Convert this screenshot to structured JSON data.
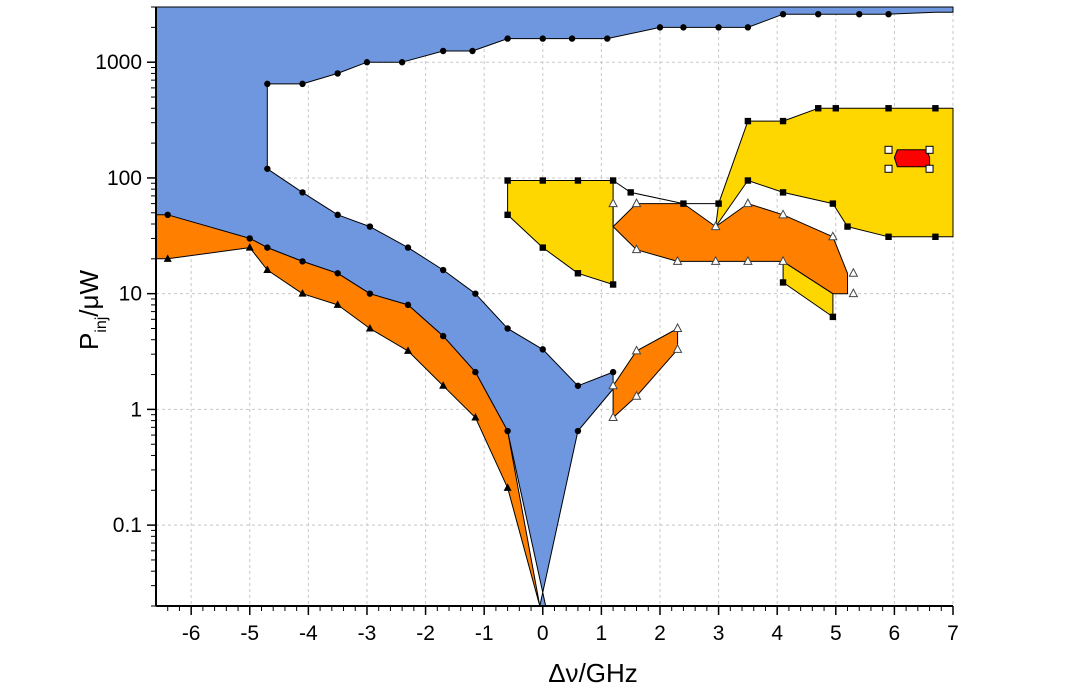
{
  "chart_data": {
    "type": "area",
    "xlabel": {
      "main": "Δν",
      "suffix": "/GHz"
    },
    "ylabel": {
      "main": "P",
      "sub": "inj",
      "suffix": "/μW"
    },
    "xlim": [
      -6.6,
      7
    ],
    "ylim": [
      0.02,
      3000
    ],
    "yscale": "log",
    "x_ticks": [
      -6,
      -5,
      -4,
      -3,
      -2,
      -1,
      0,
      1,
      2,
      3,
      4,
      5,
      6,
      7
    ],
    "x_tick_labels": [
      "-6",
      "-5",
      "-4",
      "-3",
      "-2",
      "-1",
      "0",
      "1",
      "2",
      "3",
      "4",
      "5",
      "6",
      "7"
    ],
    "y_ticks": [
      0.1,
      1,
      10,
      100,
      1000
    ],
    "y_tick_labels": [
      "0.1",
      "1",
      "10",
      "100",
      "1000"
    ],
    "grid": true,
    "colors": {
      "blue": "#6f97e0",
      "orange": "#ff8000",
      "yellow": "#ffd700",
      "red": "#ff0000",
      "line": "#000000",
      "grid": "#c8c8c8"
    },
    "regions": [
      {
        "color": "blue",
        "markers": [
          "circle"
        ],
        "polygon": [
          [
            -6.6,
            3000
          ],
          [
            7,
            3000
          ],
          [
            7,
            2700
          ],
          [
            6.7,
            2700
          ],
          [
            5.9,
            2600
          ],
          [
            5.4,
            2600
          ],
          [
            5,
            2600
          ],
          [
            4.7,
            2600
          ],
          [
            4.1,
            2600
          ],
          [
            3.5,
            2000
          ],
          [
            3,
            2000
          ],
          [
            2.4,
            2000
          ],
          [
            2,
            2000
          ],
          [
            1.1,
            1600
          ],
          [
            0.5,
            1600
          ],
          [
            0,
            1600
          ],
          [
            -0.6,
            1600
          ],
          [
            -1.2,
            1250
          ],
          [
            -1.7,
            1250
          ],
          [
            -2.4,
            1000
          ],
          [
            -3,
            1000
          ],
          [
            -3.5,
            800
          ],
          [
            -4.1,
            650
          ],
          [
            -4.7,
            650
          ],
          [
            -4.7,
            120
          ],
          [
            -4.1,
            75
          ],
          [
            -3.5,
            48
          ],
          [
            -2.95,
            38
          ],
          [
            -2.3,
            25
          ],
          [
            -1.7,
            16
          ],
          [
            -1.15,
            10
          ],
          [
            -0.6,
            5
          ],
          [
            0,
            3.3
          ],
          [
            0.6,
            1.6
          ],
          [
            1.2,
            2.1
          ],
          [
            1.2,
            1.5
          ],
          [
            0.6,
            0.65
          ],
          [
            -0.05,
            0.02
          ],
          [
            0.05,
            0.02
          ],
          [
            -0.6,
            0.65
          ],
          [
            -1.15,
            2.1
          ],
          [
            -1.7,
            4.3
          ],
          [
            -2.3,
            8
          ],
          [
            -2.95,
            10
          ],
          [
            -3.5,
            15
          ],
          [
            -4.1,
            19
          ],
          [
            -4.7,
            25
          ],
          [
            -5,
            30
          ],
          [
            -6.6,
            48
          ]
        ],
        "marker_points": [
          [
            -6.4,
            48
          ],
          [
            -5,
            30
          ],
          [
            -4.7,
            25
          ],
          [
            -4.1,
            19
          ],
          [
            -3.5,
            15
          ],
          [
            -2.95,
            10
          ],
          [
            -2.3,
            8
          ],
          [
            -1.7,
            4.3
          ],
          [
            -1.15,
            2.1
          ],
          [
            -0.6,
            0.65
          ],
          [
            0.6,
            0.65
          ],
          [
            1.2,
            2.1
          ],
          [
            0.6,
            1.6
          ],
          [
            0,
            3.3
          ],
          [
            -0.6,
            5
          ],
          [
            -1.15,
            10
          ],
          [
            -1.7,
            16
          ],
          [
            -2.3,
            25
          ],
          [
            -2.95,
            38
          ],
          [
            -3.5,
            48
          ],
          [
            -4.1,
            75
          ],
          [
            -4.7,
            120
          ],
          [
            -4.7,
            650
          ],
          [
            -4.1,
            650
          ],
          [
            -3.5,
            800
          ],
          [
            -3,
            1000
          ],
          [
            -2.4,
            1000
          ],
          [
            -1.7,
            1250
          ],
          [
            -1.2,
            1250
          ],
          [
            -0.6,
            1600
          ],
          [
            0,
            1600
          ],
          [
            0.5,
            1600
          ],
          [
            1.1,
            1600
          ],
          [
            2,
            2000
          ],
          [
            2.4,
            2000
          ],
          [
            3,
            2000
          ],
          [
            3.5,
            2000
          ],
          [
            4.1,
            2600
          ],
          [
            4.7,
            2600
          ],
          [
            5.4,
            2600
          ],
          [
            5.9,
            2600
          ]
        ]
      },
      {
        "color": "orange",
        "markers": [
          "circle",
          "filled-triangle"
        ],
        "polygon": [
          [
            -6.4,
            48
          ],
          [
            -5,
            30
          ],
          [
            -4.7,
            25
          ],
          [
            -4.1,
            19
          ],
          [
            -3.5,
            15
          ],
          [
            -2.95,
            10
          ],
          [
            -2.3,
            8
          ],
          [
            -1.7,
            4.3
          ],
          [
            -1.15,
            2.1
          ],
          [
            -0.6,
            0.65
          ],
          [
            -0.05,
            0.02
          ],
          [
            -0.6,
            0.21
          ],
          [
            -1.15,
            0.85
          ],
          [
            -1.7,
            1.6
          ],
          [
            -2.3,
            3.2
          ],
          [
            -2.95,
            5
          ],
          [
            -3.5,
            8
          ],
          [
            -4.1,
            10
          ],
          [
            -4.7,
            16
          ],
          [
            -5,
            25
          ],
          [
            -6.4,
            20
          ],
          [
            -6.6,
            20
          ],
          [
            -6.6,
            48
          ]
        ],
        "marker_points": [
          [
            -6.4,
            20
          ],
          [
            -5,
            25
          ],
          [
            -4.7,
            16
          ],
          [
            -4.1,
            10
          ],
          [
            -3.5,
            8
          ],
          [
            -2.95,
            5
          ],
          [
            -2.3,
            3.2
          ],
          [
            -1.7,
            1.6
          ],
          [
            -1.15,
            0.85
          ],
          [
            -0.6,
            0.21
          ]
        ]
      },
      {
        "color": "yellow",
        "markers": [
          "square"
        ],
        "polygon": [
          [
            -0.6,
            95
          ],
          [
            0,
            95
          ],
          [
            0.6,
            95
          ],
          [
            1.2,
            95
          ],
          [
            1.5,
            75
          ],
          [
            2.4,
            60
          ],
          [
            3,
            60
          ],
          [
            2.95,
            38
          ],
          [
            3.5,
            95
          ],
          [
            4.1,
            75
          ],
          [
            4.95,
            60
          ],
          [
            5.2,
            38
          ],
          [
            5.9,
            31
          ],
          [
            6.7,
            31
          ],
          [
            7,
            31
          ],
          [
            7,
            400
          ],
          [
            6.7,
            400
          ],
          [
            5.9,
            400
          ],
          [
            5,
            400
          ],
          [
            4.7,
            400
          ],
          [
            4.1,
            310
          ],
          [
            3.5,
            310
          ],
          [
            3,
            60
          ],
          [
            2.4,
            60
          ],
          [
            1.5,
            75
          ],
          [
            1.2,
            95
          ],
          [
            1.2,
            12
          ],
          [
            0.6,
            15
          ],
          [
            0,
            25
          ],
          [
            -0.6,
            48
          ]
        ],
        "marker_points": [
          [
            -0.6,
            95
          ],
          [
            0,
            95
          ],
          [
            0.6,
            95
          ],
          [
            1.2,
            95
          ],
          [
            1.5,
            75
          ],
          [
            2.4,
            60
          ],
          [
            3,
            60
          ],
          [
            3.5,
            310
          ],
          [
            4.1,
            310
          ],
          [
            4.7,
            400
          ],
          [
            5,
            400
          ],
          [
            5.9,
            400
          ],
          [
            6.7,
            400
          ],
          [
            6.7,
            31
          ],
          [
            5.9,
            31
          ],
          [
            5.2,
            38
          ],
          [
            4.95,
            60
          ],
          [
            4.1,
            75
          ],
          [
            3.5,
            95
          ],
          [
            1.2,
            12
          ],
          [
            0.6,
            15
          ],
          [
            0,
            25
          ],
          [
            -0.6,
            48
          ],
          [
            4.1,
            12.5
          ],
          [
            4.95,
            6.3
          ]
        ]
      },
      {
        "color": "yellow",
        "markers": [
          "square"
        ],
        "polygon": [
          [
            4.1,
            19
          ],
          [
            4.95,
            10
          ],
          [
            4.95,
            6.3
          ],
          [
            4.1,
            12.5
          ]
        ],
        "marker_points": []
      },
      {
        "color": "orange",
        "markers": [
          "open-triangle"
        ],
        "polygon": [
          [
            1.2,
            60
          ],
          [
            1.2,
            38
          ],
          [
            1.6,
            60
          ],
          [
            2.4,
            60
          ],
          [
            2.95,
            38
          ],
          [
            3.5,
            60
          ],
          [
            4.1,
            48
          ],
          [
            4.95,
            31
          ],
          [
            5.2,
            15
          ],
          [
            5.2,
            10
          ],
          [
            4.95,
            10
          ],
          [
            4.1,
            19
          ],
          [
            3.5,
            19
          ],
          [
            2.95,
            19
          ],
          [
            2.3,
            19
          ],
          [
            1.6,
            24
          ],
          [
            1.2,
            38
          ]
        ],
        "marker_points": [
          [
            1.2,
            60
          ],
          [
            1.6,
            60
          ],
          [
            2.95,
            38
          ],
          [
            3.5,
            60
          ],
          [
            4.1,
            48
          ],
          [
            4.95,
            31
          ],
          [
            5.3,
            15
          ],
          [
            5.3,
            10
          ],
          [
            4.1,
            19
          ],
          [
            3.5,
            19
          ],
          [
            2.95,
            19
          ],
          [
            2.3,
            19
          ],
          [
            1.6,
            24
          ]
        ]
      },
      {
        "color": "orange",
        "markers": [
          "open-triangle"
        ],
        "polygon": [
          [
            1.2,
            0.85
          ],
          [
            1.2,
            1.6
          ],
          [
            1.6,
            3.2
          ],
          [
            2.3,
            5
          ],
          [
            2.3,
            3.3
          ],
          [
            1.6,
            1.3
          ]
        ],
        "marker_points": [
          [
            1.2,
            0.85
          ],
          [
            1.2,
            1.6
          ],
          [
            1.6,
            3.2
          ],
          [
            2.3,
            5
          ],
          [
            2.3,
            3.3
          ],
          [
            1.6,
            1.3
          ]
        ]
      },
      {
        "color": "red",
        "markers": [
          "open-square"
        ],
        "polygon": [
          [
            6,
            150
          ],
          [
            6.05,
            125
          ],
          [
            6.6,
            125
          ],
          [
            6.6,
            150
          ],
          [
            6.55,
            175
          ],
          [
            6.05,
            175
          ]
        ],
        "marker_points": [
          [
            5.9,
            120
          ],
          [
            5.9,
            175
          ],
          [
            6.6,
            175
          ],
          [
            6.6,
            120
          ]
        ]
      }
    ]
  }
}
